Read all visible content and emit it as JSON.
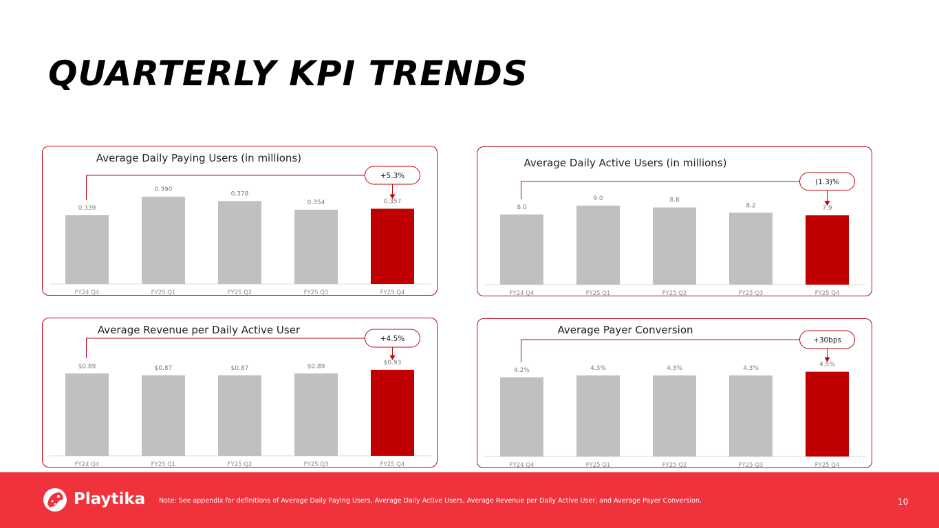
{
  "page": {
    "title": "QUARTERLY KPI TRENDS"
  },
  "chart_data": [
    {
      "type": "bar",
      "title": "Average Daily Paying Users (in millions)",
      "categories": [
        "FY24 Q4",
        "FY25 Q1",
        "FY25 Q2",
        "FY25 Q3",
        "FY25 Q4"
      ],
      "values": [
        0.339,
        0.39,
        0.378,
        0.354,
        0.357
      ],
      "value_labels": [
        "0.339",
        "0.390",
        "0.378",
        "0.354",
        "0.357"
      ],
      "ylim": [
        0.15,
        0.43
      ],
      "highlight_index": 4,
      "change_label": "+5.3%",
      "colors": {
        "bar": "#c0c0c0",
        "highlight": "#c00000"
      }
    },
    {
      "type": "bar",
      "title": "Average Daily Active Users (in millions)",
      "categories": [
        "FY24 Q4",
        "FY25 Q1",
        "FY25 Q2",
        "FY25 Q3",
        "FY25 Q4"
      ],
      "values": [
        8.0,
        9.0,
        8.8,
        8.2,
        7.9
      ],
      "value_labels": [
        "8.0",
        "9.0",
        "8.8",
        "8.2",
        "7.9"
      ],
      "ylim": [
        0,
        11.6
      ],
      "highlight_index": 4,
      "change_label": "(1.3)%",
      "colors": {
        "bar": "#c0c0c0",
        "highlight": "#c00000"
      }
    },
    {
      "type": "bar",
      "title": "Average Revenue per Daily Active User",
      "categories": [
        "FY24 Q4",
        "FY25 Q1",
        "FY25 Q2",
        "FY25 Q3",
        "FY25 Q4"
      ],
      "values": [
        0.89,
        0.87,
        0.87,
        0.89,
        0.93
      ],
      "value_labels": [
        "$0.89",
        "$0.87",
        "$0.87",
        "$0.89",
        "$0.93"
      ],
      "ylim": [
        0,
        1.1
      ],
      "highlight_index": 4,
      "change_label": "+4.5%",
      "colors": {
        "bar": "#c0c0c0",
        "highlight": "#c00000"
      }
    },
    {
      "type": "bar",
      "title": "Average Payer Conversion",
      "categories": [
        "FY24 Q4",
        "FY25 Q1",
        "FY25 Q2",
        "FY25 Q3",
        "FY25 Q4"
      ],
      "values": [
        4.2,
        4.3,
        4.3,
        4.3,
        4.5
      ],
      "value_labels": [
        "4.2%",
        "4.3%",
        "4.3%",
        "4.3%",
        "4.5%"
      ],
      "ylim": [
        0,
        5.4
      ],
      "highlight_index": 4,
      "change_label": "+30bps",
      "colors": {
        "bar": "#c0c0c0",
        "highlight": "#c00000"
      }
    }
  ],
  "footer": {
    "brand": "Playtika",
    "logo_icon": "cheetah-logo-icon",
    "note": "Note:  See appendix for definitions of Average Daily Paying Users, Average Daily Active Users, Average Revenue per Daily Active User, and Average Payer Conversion.",
    "page_number": "10",
    "background": "#f0323c"
  }
}
